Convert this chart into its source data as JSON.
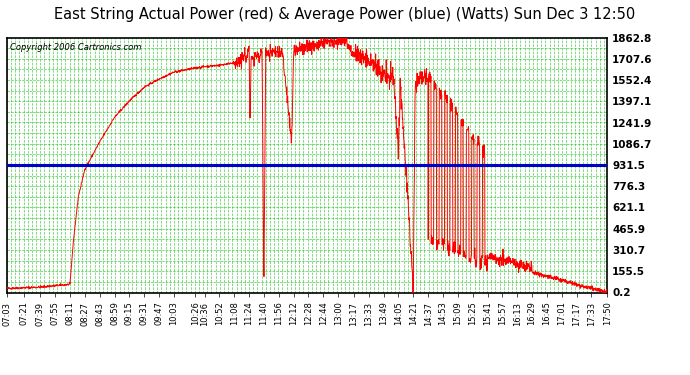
{
  "title": "East String Actual Power (red) & Average Power (blue) (Watts) Sun Dec 3 12:50",
  "copyright": "Copyright 2006 Cartronics.com",
  "avg_power": 931.5,
  "y_ticks": [
    0.2,
    155.5,
    310.7,
    465.9,
    621.1,
    776.3,
    931.5,
    1086.7,
    1241.9,
    1397.1,
    1552.4,
    1707.6,
    1862.8
  ],
  "x_tick_labels": [
    "07:03",
    "07:21",
    "07:39",
    "07:55",
    "08:11",
    "08:27",
    "08:43",
    "08:59",
    "09:15",
    "09:31",
    "09:47",
    "10:03",
    "10:26",
    "10:36",
    "10:52",
    "11:08",
    "11:24",
    "11:40",
    "11:56",
    "12:12",
    "12:28",
    "12:44",
    "13:00",
    "13:17",
    "13:33",
    "13:49",
    "14:05",
    "14:21",
    "14:37",
    "14:53",
    "15:09",
    "15:25",
    "15:41",
    "15:57",
    "16:13",
    "16:29",
    "16:45",
    "17:01",
    "17:17",
    "17:33",
    "17:50"
  ],
  "bg_color": "#ffffff",
  "plot_bg_color": "#ffffff",
  "grid_color": "#00bb00",
  "line_color_red": "#ff0000",
  "line_color_blue": "#0000cc",
  "title_fontsize": 10.5,
  "y_min": 0.2,
  "y_max": 1862.8
}
